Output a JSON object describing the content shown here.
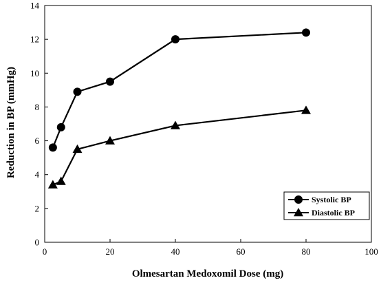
{
  "chart_data": {
    "type": "line",
    "xlabel": "Olmesartan Medoxomil Dose (mg)",
    "ylabel": "Reduction in BP (mmHg)",
    "xlim": [
      0,
      100
    ],
    "ylim": [
      0,
      14
    ],
    "xticks": [
      0,
      20,
      40,
      60,
      80,
      100
    ],
    "yticks": [
      0,
      2,
      4,
      6,
      8,
      10,
      12,
      14
    ],
    "grid": false,
    "legend_position": "bottom-right",
    "series": [
      {
        "name": "Systolic BP",
        "marker": "circle",
        "color": "#000000",
        "x": [
          2.5,
          5,
          10,
          20,
          40,
          80
        ],
        "y": [
          5.6,
          6.8,
          8.9,
          9.5,
          12.0,
          12.4
        ]
      },
      {
        "name": "Diastolic BP",
        "marker": "triangle",
        "color": "#000000",
        "x": [
          2.5,
          5,
          10,
          20,
          40,
          80
        ],
        "y": [
          3.4,
          3.6,
          5.5,
          6.0,
          6.9,
          7.8
        ]
      }
    ]
  }
}
